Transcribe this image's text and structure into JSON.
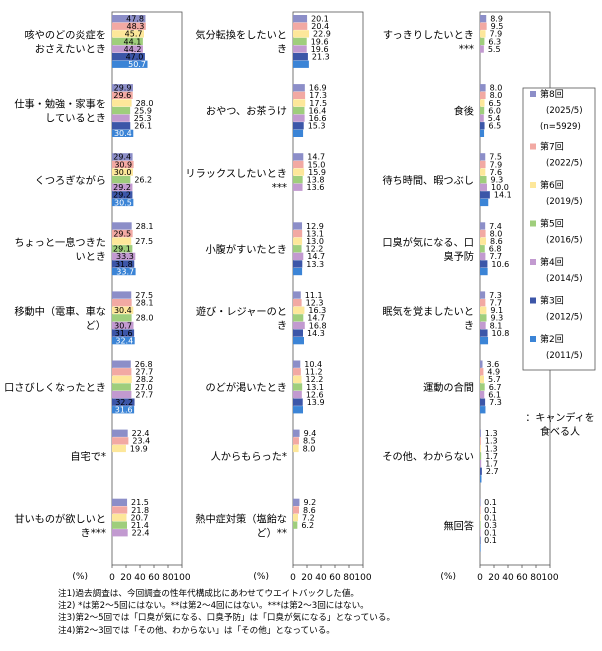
{
  "chart_data": {
    "type": "bar",
    "orientation": "horizontal",
    "xlim": [
      0,
      100
    ],
    "ticks": [
      "0",
      "20",
      "40",
      "60",
      "80",
      "100"
    ],
    "unit": "(%)",
    "legend_placement": "right",
    "series": [
      {
        "name": "第8回",
        "period": "(2025/5)",
        "sample": "(n=5929)",
        "color": "#8c8ec8"
      },
      {
        "name": "第7回",
        "period": "(2022/5)",
        "color": "#f2a9a3"
      },
      {
        "name": "第6回",
        "period": "(2019/5)",
        "color": "#fde79a"
      },
      {
        "name": "第5回",
        "period": "(2016/5)",
        "color": "#9fce7c"
      },
      {
        "name": "第4回",
        "period": "(2014/5)",
        "color": "#c29ad0"
      },
      {
        "name": "第3回",
        "period": "(2012/5)",
        "color": "#3c56a8"
      },
      {
        "name": "第2回",
        "period": "(2011/5)",
        "color": "#3b84d6"
      }
    ],
    "panels": [
      {
        "categories": [
          {
            "label": [
              "咳やのどの炎症を",
              "おさえたいとき"
            ],
            "values": [
              47.8,
              48.3,
              45.7,
              44.1,
              44.2,
              47.0,
              50.7
            ]
          },
          {
            "label": [
              "仕事・勉強・家事を",
              "しているとき"
            ],
            "values": [
              29.9,
              29.6,
              28.0,
              25.9,
              25.3,
              26.1,
              30.4
            ]
          },
          {
            "label": [
              "くつろぎながら"
            ],
            "values": [
              29.4,
              30.9,
              30.0,
              26.2,
              29.2,
              29.2,
              30.5
            ]
          },
          {
            "label": [
              "ちょっと一息つきた",
              "いとき"
            ],
            "values": [
              28.1,
              29.5,
              27.5,
              29.1,
              33.3,
              31.8,
              33.7
            ]
          },
          {
            "label": [
              "移動中（電車、車な",
              "ど）"
            ],
            "values": [
              27.5,
              28.1,
              30.4,
              28.0,
              30.7,
              31.6,
              32.4
            ]
          },
          {
            "label": [
              "口さびしくなったとき"
            ],
            "values": [
              26.8,
              27.7,
              28.2,
              27.0,
              27.7,
              32.2,
              31.6
            ]
          },
          {
            "label": [
              "自宅で*"
            ],
            "values": [
              22.4,
              23.4,
              19.9,
              null,
              null,
              null,
              null
            ]
          },
          {
            "label": [
              "甘いものが欲しいと",
              "き***"
            ],
            "values": [
              21.5,
              21.8,
              20.7,
              21.4,
              22.4,
              null,
              null
            ]
          }
        ]
      },
      {
        "categories": [
          {
            "label": [
              "気分転換をしたいと",
              "き"
            ],
            "values": [
              20.1,
              20.4,
              22.9,
              19.6,
              19.6,
              21.3,
              22.7
            ]
          },
          {
            "label": [
              "おやつ、お茶うけ"
            ],
            "values": [
              16.9,
              17.3,
              17.5,
              16.4,
              16.6,
              15.3,
              14.4
            ]
          },
          {
            "label": [
              "リラックスしたいとき",
              "***"
            ],
            "values": [
              14.7,
              15.0,
              15.9,
              13.8,
              13.6,
              null,
              null
            ]
          },
          {
            "label": [
              "小腹がすいたとき"
            ],
            "values": [
              12.9,
              13.1,
              13.0,
              12.2,
              14.7,
              13.3,
              13.0
            ]
          },
          {
            "label": [
              "遊び・レジャーのと",
              "き"
            ],
            "values": [
              11.1,
              12.3,
              16.3,
              14.7,
              16.8,
              14.3,
              15.7
            ]
          },
          {
            "label": [
              "のどが渇いたとき"
            ],
            "values": [
              10.4,
              11.2,
              12.2,
              13.1,
              12.6,
              13.9,
              14.3
            ]
          },
          {
            "label": [
              "人からもらった*"
            ],
            "values": [
              9.4,
              8.5,
              8.0,
              null,
              null,
              null,
              null
            ]
          },
          {
            "label": [
              "熱中症対策（塩飴な",
              "ど）**"
            ],
            "values": [
              9.2,
              8.6,
              7.2,
              6.2,
              null,
              null,
              null
            ]
          }
        ]
      },
      {
        "categories": [
          {
            "label": [
              "すっきりしたいとき",
              "***"
            ],
            "values": [
              8.9,
              9.5,
              7.9,
              6.3,
              5.5,
              null,
              null
            ]
          },
          {
            "label": [
              "食後"
            ],
            "values": [
              8.0,
              8.0,
              6.5,
              6.0,
              5.4,
              6.5,
              5.8
            ]
          },
          {
            "label": [
              "待ち時間、暇つぶし"
            ],
            "values": [
              7.5,
              7.9,
              7.6,
              9.3,
              10.0,
              14.1,
              11.8
            ]
          },
          {
            "label": [
              "口臭が気になる、口",
              "臭予防"
            ],
            "values": [
              7.4,
              8.0,
              8.6,
              6.8,
              7.7,
              10.6,
              10.9
            ]
          },
          {
            "label": [
              "眠気を覚ましたいと",
              "き"
            ],
            "values": [
              7.3,
              7.7,
              9.1,
              9.3,
              8.1,
              10.8,
              11.5
            ]
          },
          {
            "label": [
              "運動の合間"
            ],
            "values": [
              3.6,
              4.9,
              5.7,
              6.7,
              6.1,
              7.3,
              7.8
            ]
          },
          {
            "label": [
              "その他、わからない"
            ],
            "values": [
              1.3,
              1.3,
              1.3,
              1.7,
              1.7,
              2.7,
              2.1
            ]
          },
          {
            "label": [
              "無回答"
            ],
            "values": [
              0.1,
              0.1,
              0.1,
              0.3,
              0.1,
              0.1,
              0.1
            ]
          }
        ]
      }
    ],
    "annotation": [
      "：キャンディを",
      "食べる人"
    ]
  },
  "notes": [
    "注1)過去調査は、今回調査の性年代構成比にあわせてウエイトバックした値。",
    "注2) *は第2～5回にはない。**は第2～4回にはない。***は第2～3回にはない。",
    "注3)第2～5回では「口臭が気になる、口臭予防」は「口臭が気になる」となっている。",
    "注4)第2～3回では「その他、わからない」は「その他」となっている。"
  ]
}
